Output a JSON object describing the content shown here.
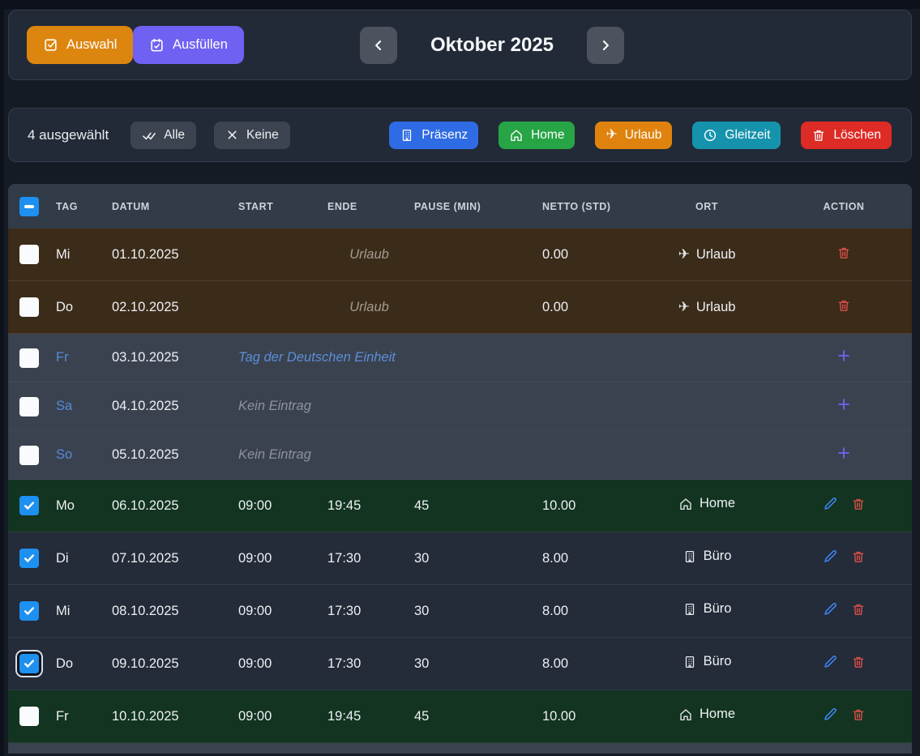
{
  "colors": {
    "page_bg": "#151b25",
    "card_bg": "#222a37",
    "card_border": "#333c4a",
    "header_row_bg": "#323b48",
    "row_normal": "#242b39",
    "row_green": "#123420",
    "row_vacation": "#3b2b19",
    "row_offday": "#3a4250",
    "checkbox_blue": "#1e90f0",
    "day_blue": "#568bd6",
    "holiday_text": "#5c8ed8",
    "muted_italic": "#8d939d",
    "vacation_note": "#a49c92",
    "edit_icon": "#3f87f5",
    "delete_icon": "#e0514a",
    "add_icon": "#6e66f0",
    "btn_auswahl": "#dd860f",
    "btn_ausfuellen": "#6f61f2",
    "btn_gray": "#3b4450",
    "nav_btn": "#4c535f"
  },
  "top_bar": {
    "auswahl_label": "Auswahl",
    "ausfuellen_label": "Ausfüllen",
    "month_title": "Oktober 2025"
  },
  "selection_bar": {
    "count_text": "4 ausgewählt",
    "alle_label": "Alle",
    "keine_label": "Keine",
    "actions": [
      {
        "label": "Präsenz",
        "icon": "building",
        "color": "#2f6be4"
      },
      {
        "label": "Home",
        "icon": "home",
        "color": "#27a445"
      },
      {
        "label": "Urlaub",
        "icon": "plane",
        "color": "#df830e"
      },
      {
        "label": "Gleitzeit",
        "icon": "clock",
        "color": "#1693ac"
      },
      {
        "label": "Löschen",
        "icon": "trash",
        "color": "#dd2b26"
      }
    ]
  },
  "table": {
    "select_all": "indeterminate",
    "columns": [
      "TAG",
      "DATUM",
      "START",
      "ENDE",
      "PAUSE (MIN)",
      "NETTO (STD)",
      "ORT",
      "ACTION"
    ],
    "rows": [
      {
        "kind": "vacation",
        "day": "Mi",
        "date": "01.10.2025",
        "note": "Urlaub",
        "netto": "0.00",
        "ort": "Urlaub",
        "ort_icon": "plane",
        "checked": false
      },
      {
        "kind": "vacation",
        "day": "Do",
        "date": "02.10.2025",
        "note": "Urlaub",
        "netto": "0.00",
        "ort": "Urlaub",
        "ort_icon": "plane",
        "checked": false
      },
      {
        "kind": "offday",
        "subtype": "holiday",
        "day": "Fr",
        "date": "03.10.2025",
        "note": "Tag der Deutschen Einheit",
        "checked": false
      },
      {
        "kind": "offday",
        "subtype": "empty",
        "day": "Sa",
        "date": "04.10.2025",
        "note": "Kein Eintrag",
        "checked": false
      },
      {
        "kind": "offday",
        "subtype": "empty",
        "day": "So",
        "date": "05.10.2025",
        "note": "Kein Eintrag",
        "checked": false
      },
      {
        "kind": "entry",
        "variant": "green",
        "day": "Mo",
        "date": "06.10.2025",
        "start": "09:00",
        "end": "19:45",
        "pause": "45",
        "netto": "10.00",
        "ort": "Home",
        "ort_icon": "home",
        "checked": true
      },
      {
        "kind": "entry",
        "variant": "normal",
        "day": "Di",
        "date": "07.10.2025",
        "start": "09:00",
        "end": "17:30",
        "pause": "30",
        "netto": "8.00",
        "ort": "Büro",
        "ort_icon": "building",
        "checked": true
      },
      {
        "kind": "entry",
        "variant": "normal",
        "day": "Mi",
        "date": "08.10.2025",
        "start": "09:00",
        "end": "17:30",
        "pause": "30",
        "netto": "8.00",
        "ort": "Büro",
        "ort_icon": "building",
        "checked": true
      },
      {
        "kind": "entry",
        "variant": "normal",
        "day": "Do",
        "date": "09.10.2025",
        "start": "09:00",
        "end": "17:30",
        "pause": "30",
        "netto": "8.00",
        "ort": "Büro",
        "ort_icon": "building",
        "checked": true,
        "focused": true
      },
      {
        "kind": "entry",
        "variant": "green",
        "day": "Fr",
        "date": "10.10.2025",
        "start": "09:00",
        "end": "19:45",
        "pause": "45",
        "netto": "10.00",
        "ort": "Home",
        "ort_icon": "home",
        "checked": false
      },
      {
        "kind": "stub"
      }
    ]
  }
}
